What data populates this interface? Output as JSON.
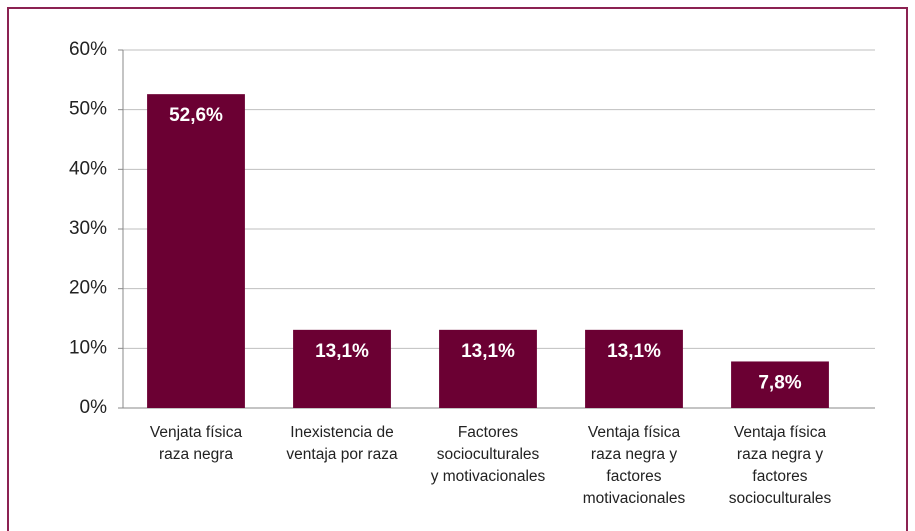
{
  "chart_data": {
    "type": "bar",
    "categories": [
      "Venjata física\nraza negra",
      "Inexistencia de\nventaja por raza",
      "Factores\nsocioculturales\ny motivacionales",
      "Ventaja física\nraza negra y\nfactores\nmotivacionales",
      "Ventaja física\nraza negra y\nfactores\nsocioculturales"
    ],
    "values": [
      52.6,
      13.1,
      13.1,
      13.1,
      7.8
    ],
    "value_labels": [
      "52,6%",
      "13,1%",
      "13,1%",
      "13,1%",
      "7,8%"
    ],
    "color": "#6b0033",
    "ylim": [
      0,
      60
    ],
    "yticks": [
      {
        "value": 0,
        "label": "0%"
      },
      {
        "value": 10,
        "label": "10%"
      },
      {
        "value": 20,
        "label": "20%"
      },
      {
        "value": 30,
        "label": "30%"
      },
      {
        "value": 40,
        "label": "40%"
      },
      {
        "value": 50,
        "label": "50%"
      },
      {
        "value": 60,
        "label": "60%"
      }
    ],
    "grid": true
  }
}
